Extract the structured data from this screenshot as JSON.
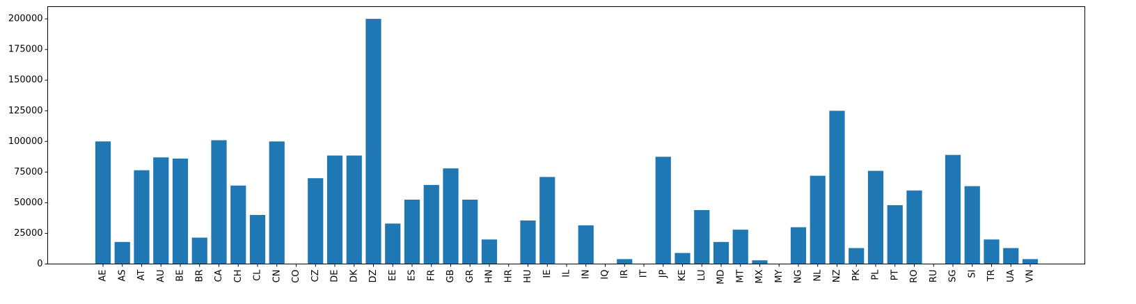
{
  "chart_data": {
    "type": "bar",
    "title": "",
    "xlabel": "",
    "ylabel": "",
    "ylim": [
      0,
      210000
    ],
    "yticks": [
      0,
      25000,
      50000,
      75000,
      100000,
      125000,
      150000,
      175000,
      200000
    ],
    "ytick_labels": [
      "0",
      "25000",
      "50000",
      "75000",
      "100000",
      "125000",
      "150000",
      "175000",
      "200000"
    ],
    "bar_color": "#1f77b4",
    "grid": false,
    "categories": [
      "AE",
      "AS",
      "AT",
      "AU",
      "BE",
      "BR",
      "CA",
      "CH",
      "CL",
      "CN",
      "CO",
      "CZ",
      "DE",
      "DK",
      "DZ",
      "EE",
      "ES",
      "FR",
      "GB",
      "GR",
      "HN",
      "HR",
      "HU",
      "IE",
      "IL",
      "IN",
      "IQ",
      "IR",
      "IT",
      "JP",
      "KE",
      "LU",
      "MD",
      "MT",
      "MX",
      "MY",
      "NG",
      "NL",
      "NZ",
      "PK",
      "PL",
      "PT",
      "RO",
      "RU",
      "SG",
      "SI",
      "TR",
      "UA",
      "VN"
    ],
    "values": [
      100000,
      18000,
      76500,
      87000,
      86000,
      21500,
      101000,
      64000,
      40000,
      100000,
      0,
      70000,
      88500,
      88500,
      200000,
      33000,
      52500,
      64500,
      78000,
      52500,
      20000,
      0,
      35500,
      71000,
      0,
      31500,
      0,
      4000,
      0,
      87500,
      9000,
      44000,
      18000,
      28000,
      3000,
      0,
      30000,
      72000,
      125000,
      13000,
      76000,
      48000,
      60000,
      0,
      89000,
      63500,
      20000,
      13000,
      4000
    ]
  }
}
